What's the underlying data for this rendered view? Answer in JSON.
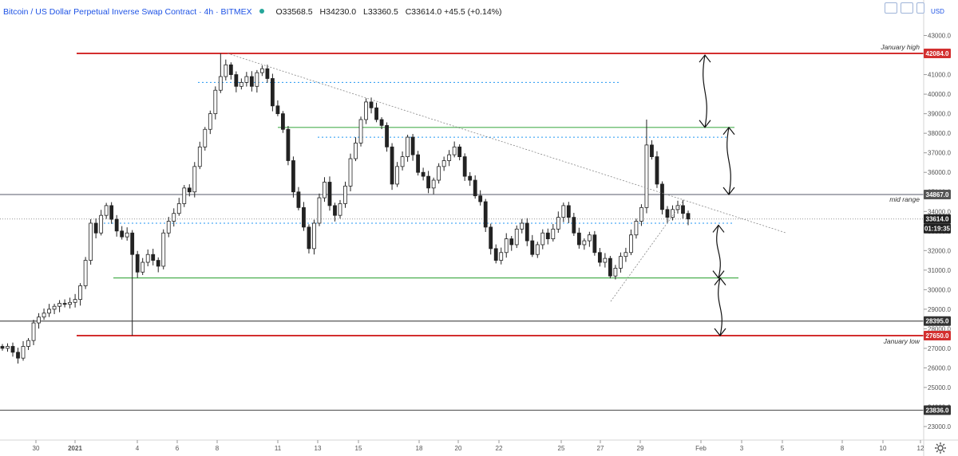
{
  "header": {
    "symbol": "Bitcoin / US Dollar Perpetual Inverse Swap Contract · 4h · BITMEX",
    "open": "O33568.5",
    "high": "H34230.0",
    "low": "L33360.5",
    "close": "C33614.0",
    "change": "+45.5 (+0.14%)",
    "currency": "USD",
    "settings_icon": "gear-icon",
    "live_dot_color": "#26a69a"
  },
  "chart_data": {
    "type": "candlestick",
    "title": "Bitcoin / US Dollar Perpetual Inverse Swap Contract · 4h · BITMEX",
    "timeframe": "4h",
    "ylim": [
      22500,
      44500
    ],
    "y_ticks": [
      23000,
      24000,
      25000,
      26000,
      27000,
      28000,
      29000,
      30000,
      31000,
      32000,
      33000,
      34000,
      35000,
      36000,
      37000,
      38000,
      39000,
      40000,
      41000,
      42000,
      43000
    ],
    "x_ticks": [
      "30",
      "2021",
      "4",
      "6",
      "8",
      "11",
      "13",
      "15",
      "18",
      "20",
      "22",
      "25",
      "27",
      "29",
      "Feb",
      "3",
      "5",
      "8",
      "10",
      "12"
    ],
    "horizontal_levels": [
      {
        "price": 42084.0,
        "label": "January high",
        "color": "#d32f2f",
        "style": "solid"
      },
      {
        "price": 34867.0,
        "label": "mid range",
        "color": "#787b86",
        "style": "solid"
      },
      {
        "price": 28395.0,
        "label": "",
        "color": "#555555",
        "style": "solid"
      },
      {
        "price": 27650.0,
        "label": "January low",
        "color": "#d32f2f",
        "style": "solid"
      },
      {
        "price": 23836.0,
        "label": "",
        "color": "#555555",
        "style": "solid"
      }
    ],
    "range_lines": [
      {
        "price": 38300,
        "color": "#4caf50"
      },
      {
        "price": 30600,
        "color": "#4caf50"
      }
    ],
    "dotted_levels": [
      40600,
      37800,
      33400
    ],
    "current_price": 33614.0,
    "countdown": "01:19:35",
    "price_badges": [
      "42084.0",
      "34867.0",
      "33614.0",
      "28395.0",
      "27650.0",
      "23836.0"
    ],
    "closes": [
      27000,
      27100,
      26800,
      26500,
      27100,
      27400,
      28300,
      28600,
      28800,
      29000,
      29150,
      29300,
      29250,
      29350,
      29500,
      30200,
      31500,
      33400,
      32900,
      33800,
      34300,
      33600,
      33000,
      32700,
      32900,
      31800,
      30900,
      31400,
      31800,
      31500,
      31200,
      32900,
      33500,
      33900,
      34400,
      35200,
      35000,
      36300,
      37300,
      38200,
      39000,
      40200,
      40900,
      41500,
      41000,
      40400,
      40600,
      40900,
      40400,
      41100,
      41300,
      40800,
      39400,
      39000,
      38200,
      36600,
      35000,
      34200,
      33200,
      32100,
      33400,
      34700,
      35500,
      34300,
      33800,
      34400,
      35300,
      36700,
      37500,
      38700,
      39600,
      39300,
      38700,
      38400,
      37300,
      35400,
      36300,
      36800,
      37800,
      36900,
      36000,
      35800,
      35200,
      35600,
      36300,
      36600,
      36900,
      37300,
      36800,
      35800,
      35600,
      34800,
      34500,
      33200,
      32100,
      31500,
      31900,
      32600,
      32300,
      33100,
      33400,
      32500,
      31800,
      32300,
      32900,
      32600,
      33100,
      33700,
      34300,
      33700,
      32900,
      32300,
      32500,
      32800,
      31900,
      31400,
      31600,
      30700,
      31100,
      31700,
      31900,
      32800,
      33500,
      34200,
      37400,
      36800,
      35400,
      34100,
      33700,
      34100,
      34300,
      33900,
      33614
    ]
  }
}
